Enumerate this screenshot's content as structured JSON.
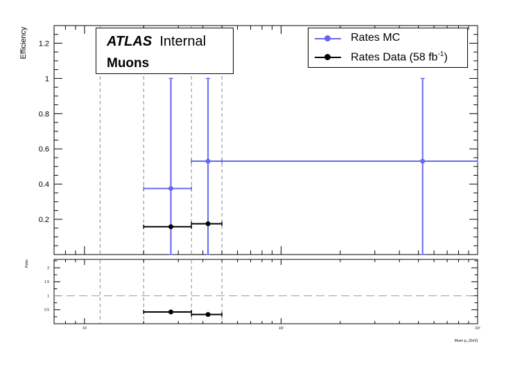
{
  "chart_data": [
    {
      "type": "scatter",
      "ylabel": "Efficiency",
      "xscale": "log",
      "xlim": [
        7,
        1000
      ],
      "ylim": [
        0,
        1.3
      ],
      "y_ticks": [
        0.2,
        0.4,
        0.6,
        0.8,
        1,
        1.2
      ],
      "y_tick_labels": [
        "0.2",
        "0.4",
        "0.6",
        "0.8",
        "1",
        "1.2"
      ],
      "vertical_dashed_lines": [
        12,
        20,
        35,
        50
      ],
      "legend_position": "top-right",
      "text_box": {
        "atlas": "ATLAS",
        "status": "Internal",
        "selection": "Muons"
      },
      "series": [
        {
          "name": "Rates MC",
          "color": "#6666ee",
          "points": [
            {
              "x": 27.5,
              "xerr": [
                20,
                35
              ],
              "y": 0.375,
              "yerr": [
                0,
                1
              ]
            },
            {
              "x": 42.5,
              "xerr": [
                35,
                50
              ],
              "y": 0.53,
              "yerr": [
                0,
                1
              ]
            },
            {
              "x": 525,
              "xerr": [
                35,
                1000
              ],
              "y": 0.53,
              "yerr": [
                0,
                1
              ]
            }
          ]
        },
        {
          "name": "Rates Data",
          "name_suffix": "(58 fb",
          "name_sup": "-1",
          "name_end": ")",
          "color": "#000000",
          "points": [
            {
              "x": 27.5,
              "xerr": [
                20,
                35
              ],
              "y": 0.158
            },
            {
              "x": 42.5,
              "xerr": [
                35,
                50
              ],
              "y": 0.175
            }
          ]
        }
      ]
    },
    {
      "type": "scatter",
      "ylabel": "Ratio",
      "xlabel": "Muon p_{T} [GeV]",
      "xscale": "log",
      "xlim": [
        7,
        1000
      ],
      "ylim": [
        0,
        2.3
      ],
      "y_ticks": [
        0.5,
        1,
        1.5,
        2
      ],
      "y_tick_labels": [
        "0.5",
        "1",
        "1.5",
        "2"
      ],
      "x_tick_labels": [
        "10",
        "10²",
        "10³"
      ],
      "reference_line": 1,
      "series": [
        {
          "name": "Ratio",
          "color": "#000000",
          "points": [
            {
              "x": 27.5,
              "xerr": [
                20,
                35
              ],
              "y": 0.42
            },
            {
              "x": 42.5,
              "xerr": [
                35,
                50
              ],
              "y": 0.33
            }
          ]
        }
      ]
    }
  ]
}
